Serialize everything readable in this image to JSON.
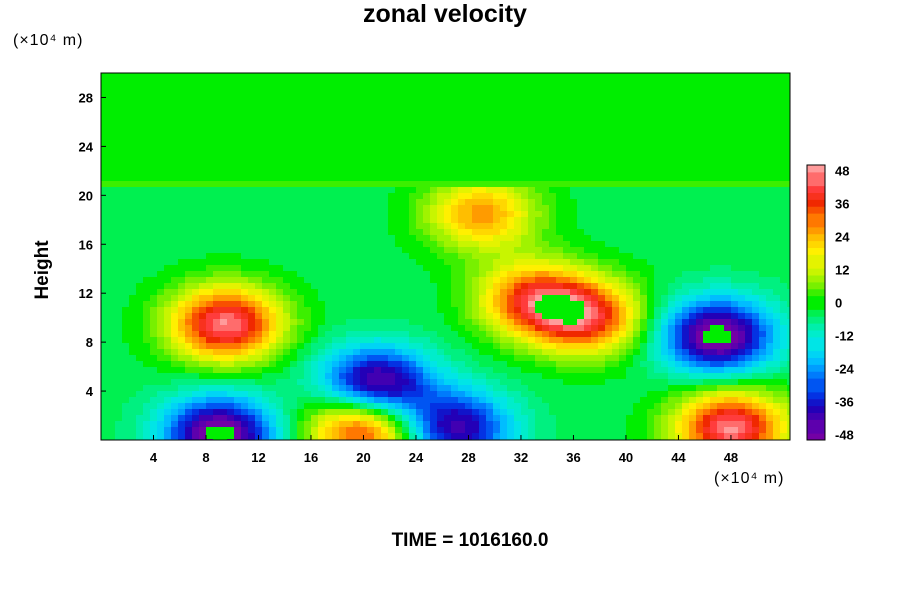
{
  "chart_data": {
    "type": "heatmap",
    "title": "zonal velocity",
    "xlabel": "",
    "ylabel": "Height",
    "x_unit": "(×10⁴ m)",
    "y_unit": "(×10⁴ m)",
    "xlim": [
      0,
      52.5
    ],
    "ylim": [
      0,
      30
    ],
    "x_ticks": [
      "4",
      "8",
      "12",
      "16",
      "20",
      "24",
      "28",
      "32",
      "36",
      "40",
      "44",
      "48"
    ],
    "y_ticks": [
      "4",
      "8",
      "12",
      "16",
      "20",
      "24",
      "28"
    ],
    "colorbar": {
      "range": [
        -50,
        50
      ],
      "ticks": [
        "48",
        "36",
        "24",
        "12",
        "0",
        "-12",
        "-24",
        "-36",
        "-48"
      ]
    },
    "features": [
      {
        "name": "jet core upper left",
        "x": 9.5,
        "y": 9.5,
        "value": 50
      },
      {
        "name": "surface low left",
        "x": 9,
        "y": 0.5,
        "value": -50
      },
      {
        "name": "surface high center",
        "x": 20,
        "y": 1,
        "value": 45
      },
      {
        "name": "low center",
        "x": 21,
        "y": 4.5,
        "value": -48
      },
      {
        "name": "low right",
        "x": 47,
        "y": 8.5,
        "value": -50
      },
      {
        "name": "surface high right",
        "x": 48,
        "y": 1,
        "value": 50
      },
      {
        "name": "maximum center right",
        "x": 37,
        "y": 10,
        "value": 40
      },
      {
        "name": "maximum center",
        "x": 33,
        "y": 11.5,
        "value": 38
      },
      {
        "name": "maximum upper center",
        "x": 29,
        "y": 18.5,
        "value": 30
      },
      {
        "name": "low surface center",
        "x": 27,
        "y": 1,
        "value": -40
      }
    ]
  },
  "time_label": "TIME = 1016160.0"
}
